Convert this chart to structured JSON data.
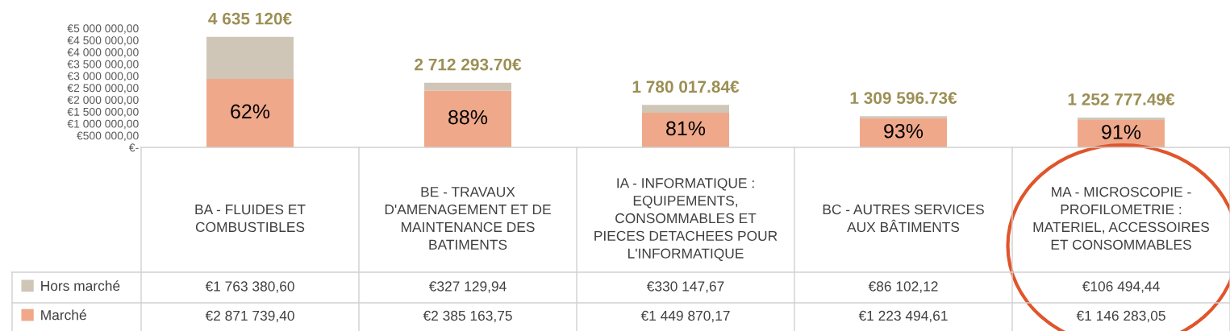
{
  "chart_data": {
    "type": "bar",
    "stacked": true,
    "categories": [
      "BA - FLUIDES ET COMBUSTIBLES",
      "BE - TRAVAUX D'AMENAGEMENT ET DE MAINTENANCE DES BATIMENTS",
      "IA - INFORMATIQUE : EQUIPEMENTS, CONSOMMABLES ET PIECES DETACHEES POUR L'INFORMATIQUE",
      "BC - AUTRES SERVICES AUX BÂTIMENTS",
      "MA - MICROSCOPIE - PROFILOMETRIE : MATERIEL, ACCESSOIRES ET CONSOMMABLES"
    ],
    "series": [
      {
        "name": "Marché",
        "color": "#f0a88a",
        "values": [
          2871739.4,
          2385163.75,
          1449870.17,
          1223494.61,
          1146283.05
        ],
        "value_labels": [
          "€2 871 739,40",
          "€2 385 163,75",
          "€1 449 870,17",
          "€1 223 494,61",
          "€1 146 283,05"
        ]
      },
      {
        "name": "Hors marché",
        "color": "#cfc6b8",
        "values": [
          1763380.6,
          327129.94,
          330147.67,
          86102.12,
          106494.44
        ],
        "value_labels": [
          "€1 763 380,60",
          "€327 129,94",
          "€330 147,67",
          "€86 102,12",
          "€106 494,44"
        ]
      }
    ],
    "totals": [
      "4 635 120€",
      "2 712 293.70€",
      "1 780 017.84€",
      "1 309 596.73€",
      "1 252 777.49€"
    ],
    "ylim": [
      0,
      5000000
    ],
    "yticks": [
      {
        "value": 0,
        "label": "€-"
      },
      {
        "value": 500000,
        "label": "€500 000,00"
      },
      {
        "value": 1000000,
        "label": "€1 000 000,00"
      },
      {
        "value": 1500000,
        "label": "€1 500 000,00"
      },
      {
        "value": 2000000,
        "label": "€2 000 000,00"
      },
      {
        "value": 2500000,
        "label": "€2 500 000,00"
      },
      {
        "value": 3000000,
        "label": "€3 000 000,00"
      },
      {
        "value": 3500000,
        "label": "€3 500 000,00"
      },
      {
        "value": 4000000,
        "label": "€4 000 000,00"
      },
      {
        "value": 4500000,
        "label": "€4 500 000,00"
      },
      {
        "value": 5000000,
        "label": "€5 000 000,00"
      }
    ],
    "annotations": [
      "62%",
      "88%",
      "81%",
      "93%",
      "91%"
    ],
    "legend": "bottom left",
    "grid": false
  }
}
